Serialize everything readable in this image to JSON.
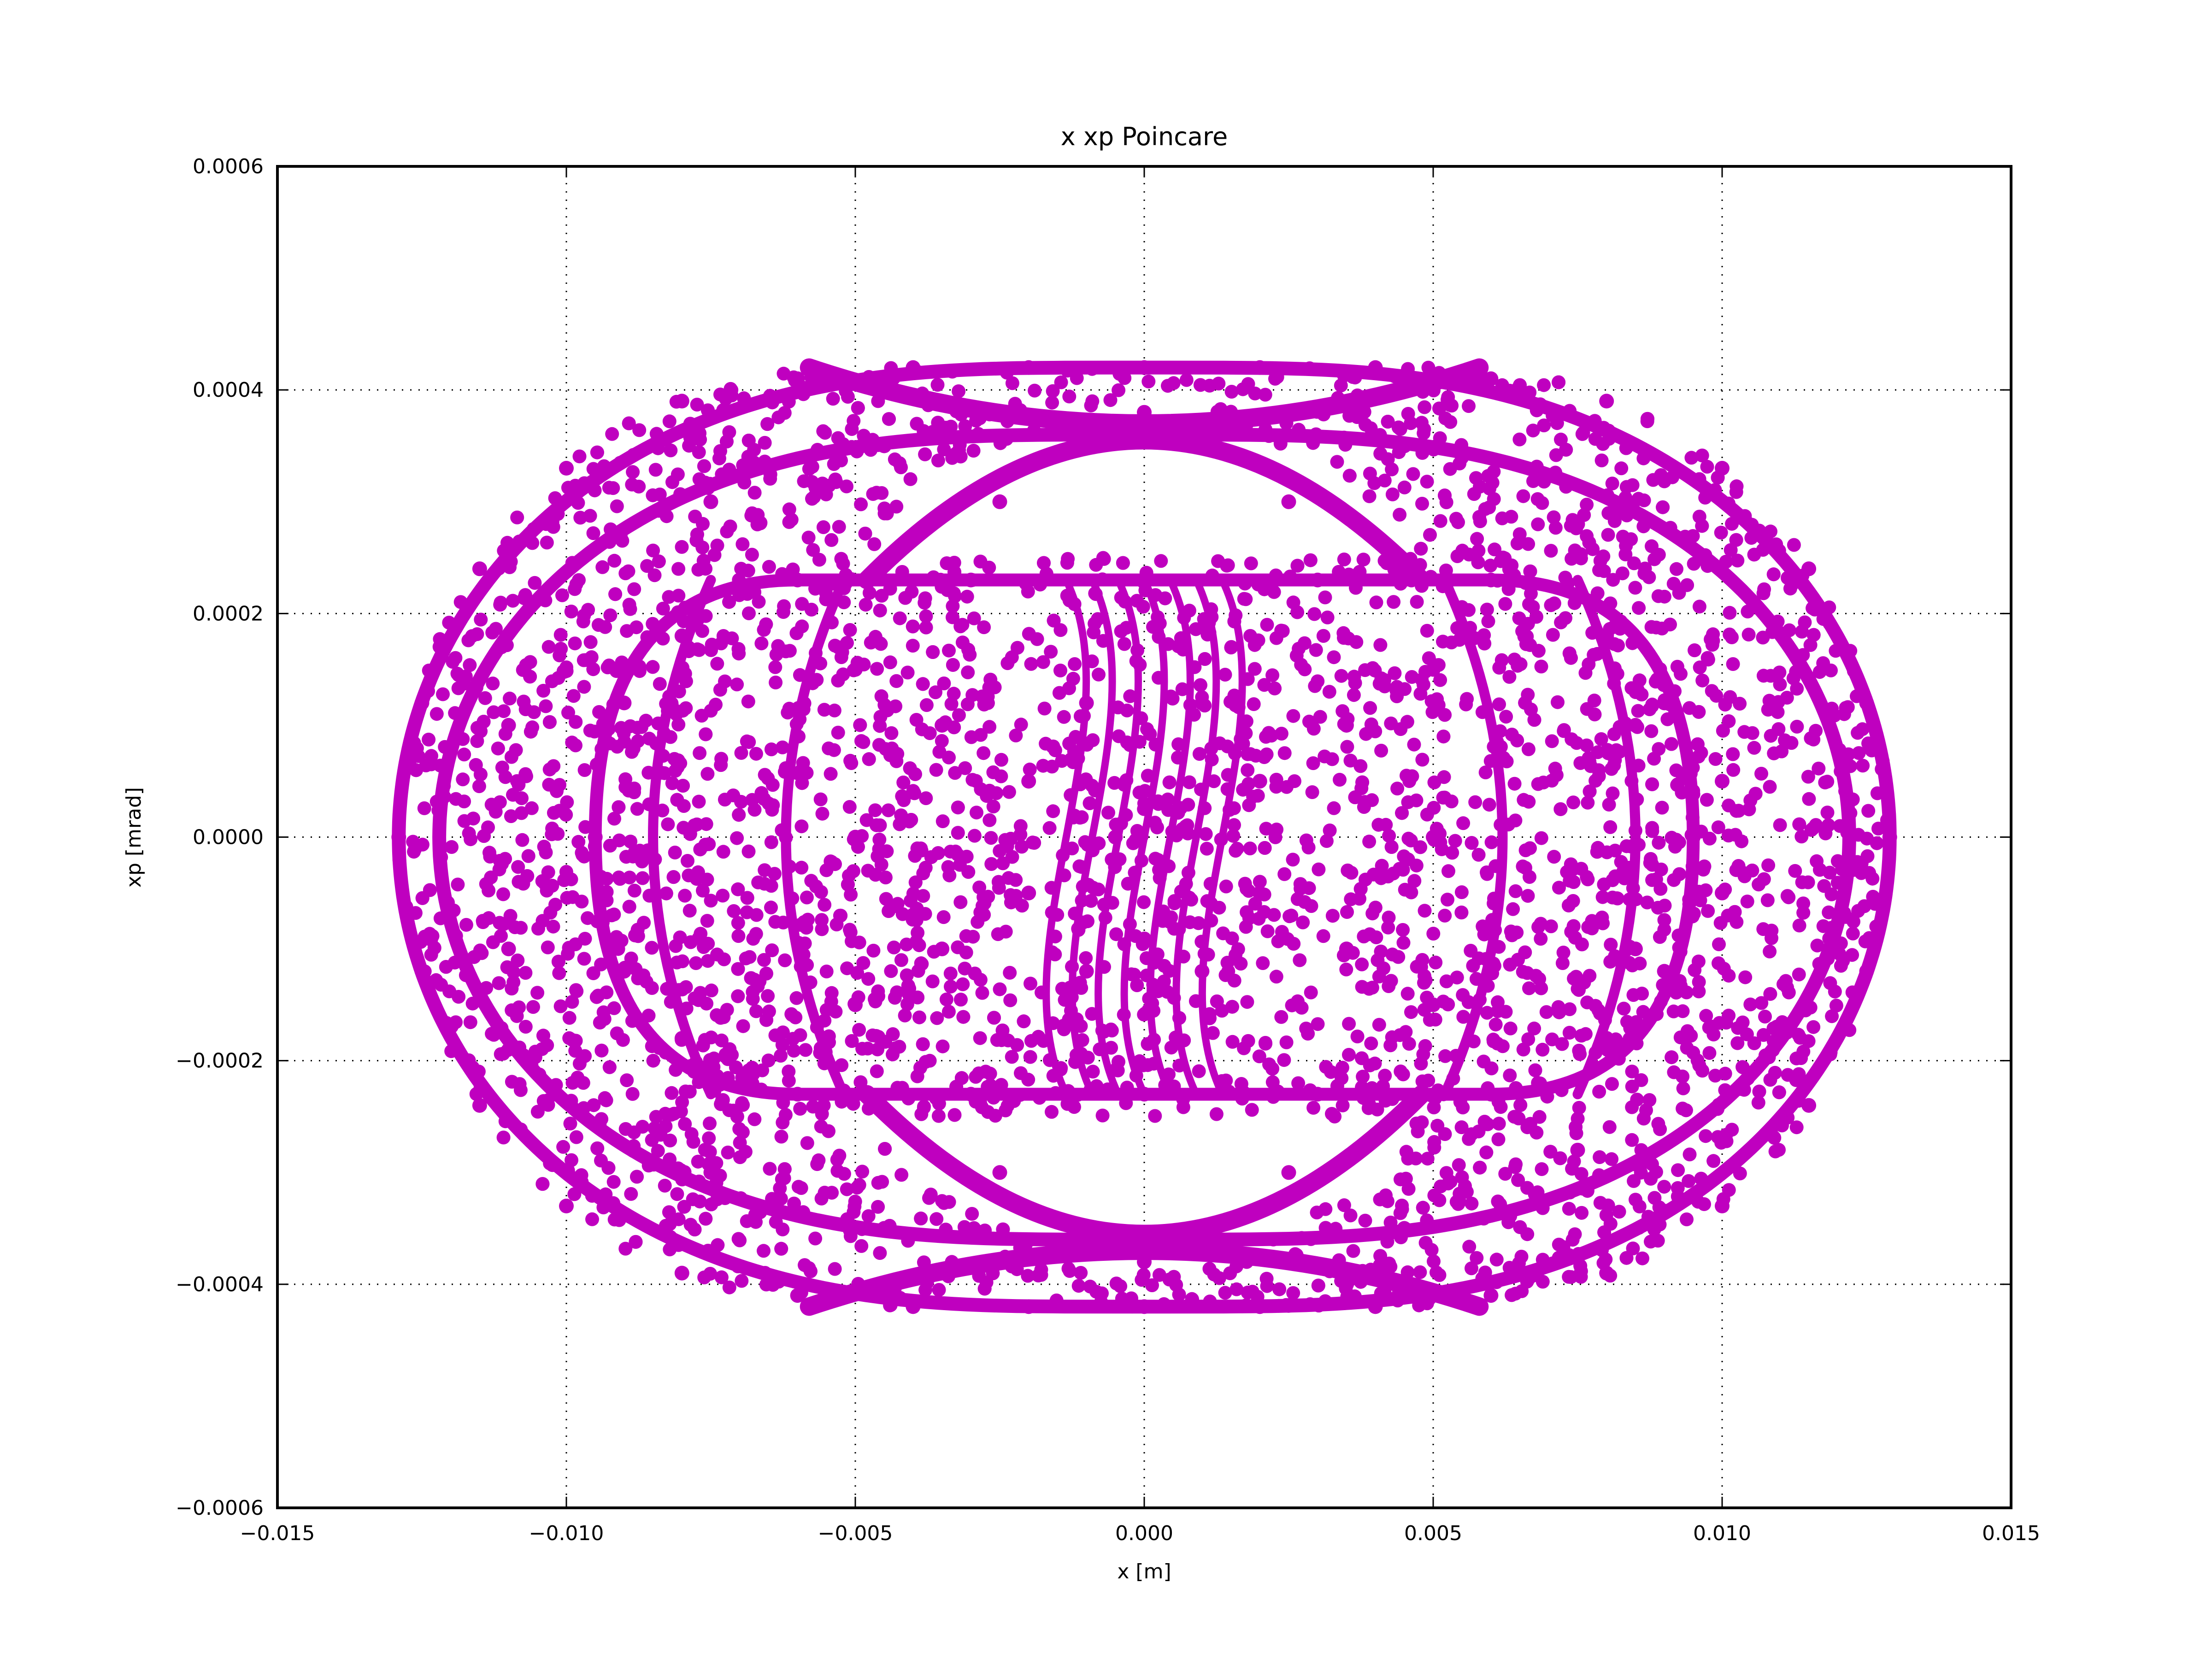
{
  "chart_data": {
    "type": "scatter",
    "title": "x xp Poincare",
    "xlabel": "x [m]",
    "ylabel": "xp [mrad]",
    "xlim": [
      -0.015,
      0.015
    ],
    "ylim": [
      -0.0006,
      0.0006
    ],
    "xticks": [
      -0.015,
      -0.01,
      -0.005,
      0.0,
      0.005,
      0.01,
      0.015
    ],
    "xtick_labels": [
      "−0.015",
      "−0.010",
      "−0.005",
      "0.000",
      "0.005",
      "0.010",
      "0.015"
    ],
    "yticks": [
      -0.0006,
      -0.0004,
      -0.0002,
      0.0,
      0.0002,
      0.0004,
      0.0006
    ],
    "ytick_labels": [
      "−0.0006",
      "−0.0004",
      "−0.0002",
      "0.0000",
      "0.0002",
      "0.0004",
      "0.0006"
    ],
    "grid": true,
    "marker_color": "#bf00bf",
    "series": [
      {
        "values": [
          [
            -0.0129,
            0.0
          ],
          [
            -0.0125,
            0.00012
          ],
          [
            -0.0125,
            -0.00012
          ],
          [
            -0.0115,
            0.00024
          ],
          [
            -0.0115,
            -0.00024
          ],
          [
            -0.01,
            0.00033
          ],
          [
            -0.01,
            -0.00033
          ],
          [
            -0.008,
            0.00039
          ],
          [
            -0.008,
            -0.00039
          ],
          [
            -0.006,
            0.00041
          ],
          [
            -0.006,
            -0.00041
          ],
          [
            -0.004,
            0.00042
          ],
          [
            -0.004,
            -0.00042
          ],
          [
            -0.002,
            0.00042
          ],
          [
            -0.002,
            -0.00042
          ],
          [
            0.0,
            0.00042
          ],
          [
            0.0,
            -0.00042
          ],
          [
            0.002,
            0.00042
          ],
          [
            0.002,
            -0.00042
          ],
          [
            0.004,
            0.00042
          ],
          [
            0.004,
            -0.00042
          ],
          [
            0.006,
            0.00041
          ],
          [
            0.006,
            -0.00041
          ],
          [
            0.008,
            0.00039
          ],
          [
            0.008,
            -0.00039
          ],
          [
            0.01,
            0.00033
          ],
          [
            0.01,
            -0.00033
          ],
          [
            0.0115,
            0.00024
          ],
          [
            0.0115,
            -0.00024
          ],
          [
            0.0125,
            0.00012
          ],
          [
            0.0125,
            -0.00012
          ],
          [
            0.0129,
            0.0
          ],
          [
            -0.0095,
            0.0
          ],
          [
            -0.009,
            0.00012
          ],
          [
            -0.009,
            -0.00012
          ],
          [
            -0.008,
            0.00018
          ],
          [
            -0.008,
            -0.00018
          ],
          [
            -0.006,
            0.00023
          ],
          [
            -0.006,
            -0.00023
          ],
          [
            -0.003,
            0.00023
          ],
          [
            -0.003,
            -0.00023
          ],
          [
            0.0,
            0.00023
          ],
          [
            0.0,
            -0.00023
          ],
          [
            0.003,
            0.00023
          ],
          [
            0.003,
            -0.00023
          ],
          [
            0.006,
            0.00023
          ],
          [
            0.006,
            -0.00023
          ],
          [
            0.008,
            0.00018
          ],
          [
            0.008,
            -0.00018
          ],
          [
            0.009,
            0.00012
          ],
          [
            0.009,
            -0.00012
          ],
          [
            0.0095,
            0.0
          ],
          [
            -0.005,
            0.00015
          ],
          [
            -0.005,
            -0.00015
          ],
          [
            -0.005,
            0.0
          ],
          [
            -0.0035,
            0.0001
          ],
          [
            -0.0035,
            -0.0001
          ],
          [
            -0.002,
            5e-05
          ],
          [
            -0.002,
            -5e-05
          ],
          [
            -0.001,
            0.00012
          ],
          [
            -0.001,
            -0.00012
          ],
          [
            -0.0005,
            0.0
          ],
          [
            0.001,
            0.00012
          ],
          [
            0.001,
            -0.00012
          ],
          [
            0.002,
            5e-05
          ],
          [
            0.002,
            -5e-05
          ],
          [
            0.0035,
            0.0001
          ],
          [
            0.0035,
            -0.0001
          ],
          [
            0.005,
            0.0
          ],
          [
            0.005,
            0.00015
          ],
          [
            0.005,
            -0.00015
          ],
          [
            -0.0045,
            0.00035
          ],
          [
            -0.0045,
            -0.00035
          ],
          [
            -0.0025,
            0.0003
          ],
          [
            -0.0025,
            -0.0003
          ],
          [
            0.0025,
            0.0003
          ],
          [
            0.0025,
            -0.0003
          ],
          [
            0.0045,
            0.00035
          ],
          [
            0.0045,
            -0.00035
          ],
          [
            0.0,
            0.00038
          ],
          [
            0.0,
            -0.00038
          ],
          [
            0.0085,
            0.0001
          ],
          [
            0.0085,
            -0.0001
          ],
          [
            0.01,
            5e-05
          ],
          [
            0.01,
            -5e-05
          ],
          [
            0.0075,
            0.00028
          ],
          [
            0.0075,
            -0.00028
          ],
          [
            -0.011,
            0.0001
          ],
          [
            -0.011,
            -0.0001
          ],
          [
            -0.0075,
            0.0003
          ],
          [
            -0.0075,
            -0.0003
          ]
        ]
      }
    ]
  }
}
